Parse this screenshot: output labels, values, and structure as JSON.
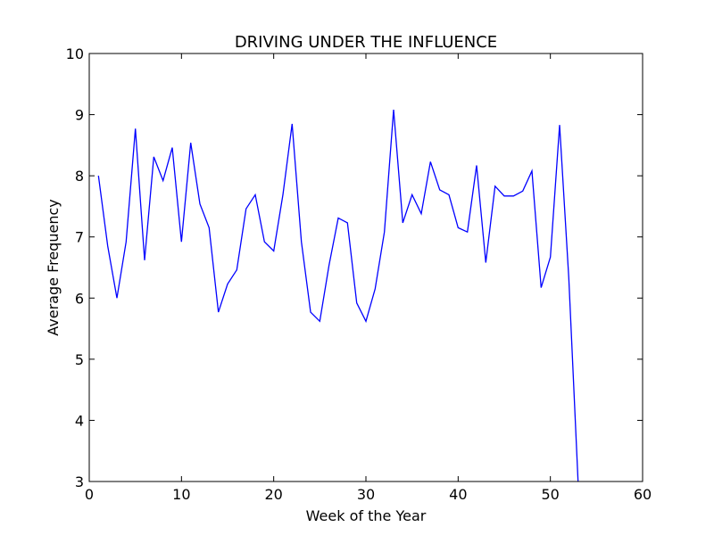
{
  "chart_data": {
    "type": "line",
    "title": "DRIVING UNDER THE INFLUENCE",
    "xlabel": "Week of the Year",
    "ylabel": "Average Frequency",
    "xlim": [
      0,
      60
    ],
    "ylim": [
      3,
      10
    ],
    "xticks": [
      0,
      10,
      20,
      30,
      40,
      50,
      60
    ],
    "yticks": [
      3,
      4,
      5,
      6,
      7,
      8,
      9,
      10
    ],
    "grid": false,
    "line_color": "#0000ff",
    "series": [
      {
        "x": [
          1,
          2,
          3,
          4,
          5,
          6,
          7,
          8,
          9,
          10,
          11,
          12,
          13,
          14,
          15,
          16,
          17,
          18,
          19,
          20,
          21,
          22,
          23,
          24,
          25,
          26,
          27,
          28,
          29,
          30,
          31,
          32,
          33,
          34,
          35,
          36,
          37,
          38,
          39,
          40,
          41,
          42,
          43,
          44,
          45,
          46,
          47,
          48,
          49,
          50,
          51,
          52,
          53
        ],
        "values": [
          8.0,
          6.85,
          6.0,
          6.92,
          8.77,
          6.62,
          8.31,
          7.92,
          8.46,
          6.92,
          8.54,
          7.54,
          7.15,
          5.77,
          6.23,
          6.46,
          7.46,
          7.69,
          6.92,
          6.77,
          7.69,
          8.85,
          6.92,
          5.77,
          5.62,
          6.54,
          7.31,
          7.23,
          5.92,
          5.62,
          6.15,
          7.08,
          9.08,
          7.23,
          7.69,
          7.38,
          8.23,
          7.77,
          7.69,
          7.15,
          7.08,
          8.17,
          6.58,
          7.83,
          7.67,
          7.67,
          7.75,
          8.08,
          6.17,
          6.67,
          8.83,
          6.33,
          3.0
        ]
      }
    ]
  }
}
